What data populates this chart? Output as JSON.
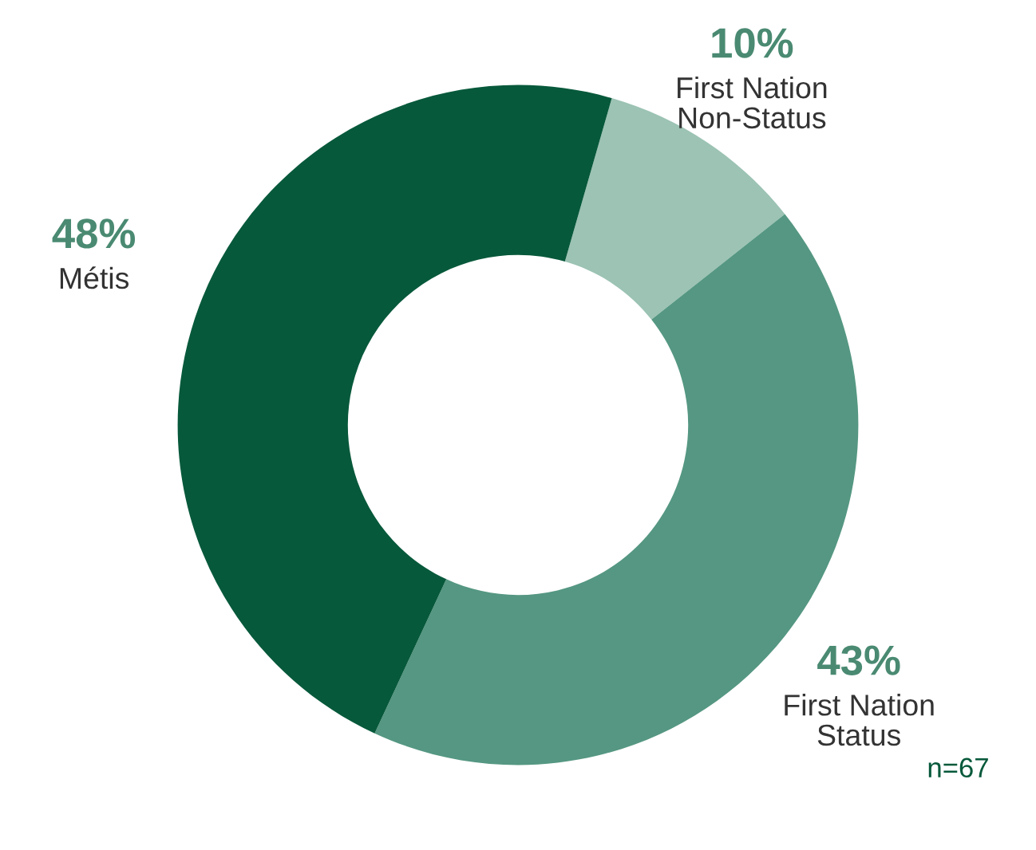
{
  "chart_data": {
    "type": "donut",
    "categories": [
      "First Nation\nNon-Status",
      "First Nation\nStatus",
      "Métis"
    ],
    "values": [
      10,
      43,
      48
    ],
    "colors": [
      "#9cc3b4",
      "#559782",
      "#07593b"
    ],
    "value_labels": [
      "10%",
      "43%",
      "48%"
    ],
    "annotations": [
      "n=67"
    ]
  }
}
